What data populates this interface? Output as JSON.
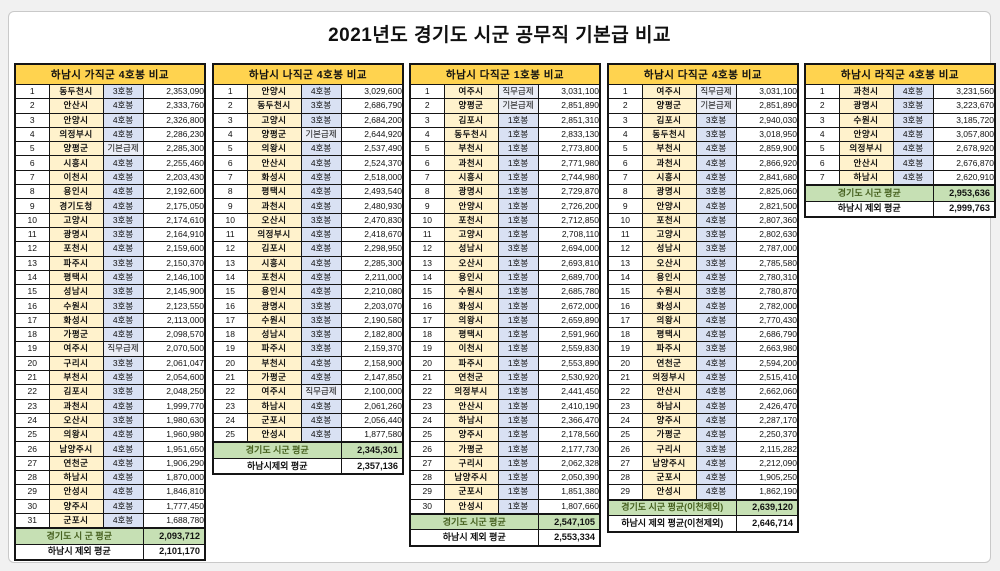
{
  "title": "2021년도 경기도 시군 공무직 기본급 비교",
  "colors": {
    "table_header_bg": "#ffd34f",
    "city_cell_bg": "#fff2cc",
    "pay_step_cell_bg": "#d9e1f3",
    "summary_highlight_bg": "#c6e0b4",
    "page_bg": "#f1f1f1"
  },
  "tables": [
    {
      "header": "하남시 가직군 4호봉 비교",
      "rows": [
        [
          "1",
          "동두천시",
          "3호봉",
          "2,353,090"
        ],
        [
          "2",
          "안산시",
          "4호봉",
          "2,333,760"
        ],
        [
          "3",
          "안양시",
          "4호봉",
          "2,326,800"
        ],
        [
          "4",
          "의정부시",
          "4호봉",
          "2,286,230"
        ],
        [
          "5",
          "양평군",
          "기본급제",
          "2,285,300"
        ],
        [
          "6",
          "시흥시",
          "4호봉",
          "2,255,460"
        ],
        [
          "7",
          "이천시",
          "4호봉",
          "2,203,430"
        ],
        [
          "8",
          "용인시",
          "4호봉",
          "2,192,600"
        ],
        [
          "9",
          "경기도청",
          "4호봉",
          "2,175,050"
        ],
        [
          "10",
          "고양시",
          "3호봉",
          "2,174,610"
        ],
        [
          "11",
          "광명시",
          "3호봉",
          "2,164,910"
        ],
        [
          "12",
          "포천시",
          "4호봉",
          "2,159,600"
        ],
        [
          "13",
          "파주시",
          "3호봉",
          "2,150,370"
        ],
        [
          "14",
          "평택시",
          "4호봉",
          "2,146,100"
        ],
        [
          "15",
          "성남시",
          "3호봉",
          "2,145,900"
        ],
        [
          "16",
          "수원시",
          "3호봉",
          "2,123,550"
        ],
        [
          "17",
          "화성시",
          "4호봉",
          "2,113,000"
        ],
        [
          "18",
          "가평군",
          "4호봉",
          "2,098,570"
        ],
        [
          "19",
          "여주시",
          "직무급제",
          "2,070,500"
        ],
        [
          "20",
          "구리시",
          "3호봉",
          "2,061,047"
        ],
        [
          "21",
          "부천시",
          "4호봉",
          "2,054,600"
        ],
        [
          "22",
          "김포시",
          "3호봉",
          "2,048,250"
        ],
        [
          "23",
          "과천시",
          "4호봉",
          "1,999,770"
        ],
        [
          "24",
          "오산시",
          "3호봉",
          "1,980,630"
        ],
        [
          "25",
          "의왕시",
          "4호봉",
          "1,960,980"
        ],
        [
          "26",
          "남양주시",
          "4호봉",
          "1,951,650"
        ],
        [
          "27",
          "연천군",
          "4호봉",
          "1,906,290"
        ],
        [
          "28",
          "하남시",
          "4호봉",
          "1,870,000"
        ],
        [
          "29",
          "안성시",
          "4호봉",
          "1,846,810"
        ],
        [
          "30",
          "양주시",
          "4호봉",
          "1,777,450"
        ],
        [
          "31",
          "군포시",
          "4호봉",
          "1,688,780"
        ]
      ],
      "summary": [
        {
          "label": "경기도 시 군 평균",
          "value": "2,093,712",
          "highlight": true
        },
        {
          "label": "하남시 제외 평균",
          "value": "2,101,170",
          "highlight": false
        }
      ]
    },
    {
      "header": "하남시 나직군 4호봉 비교",
      "rows": [
        [
          "1",
          "안양시",
          "4호봉",
          "3,029,600"
        ],
        [
          "2",
          "동두천시",
          "3호봉",
          "2,686,790"
        ],
        [
          "3",
          "고양시",
          "3호봉",
          "2,684,200"
        ],
        [
          "4",
          "양평군",
          "기본급제",
          "2,644,920"
        ],
        [
          "5",
          "의왕시",
          "4호봉",
          "2,537,490"
        ],
        [
          "6",
          "안산시",
          "4호봉",
          "2,524,370"
        ],
        [
          "7",
          "화성시",
          "4호봉",
          "2,518,000"
        ],
        [
          "8",
          "평택시",
          "4호봉",
          "2,493,540"
        ],
        [
          "9",
          "과천시",
          "4호봉",
          "2,480,930"
        ],
        [
          "10",
          "오산시",
          "3호봉",
          "2,470,830"
        ],
        [
          "11",
          "의정부시",
          "4호봉",
          "2,418,670"
        ],
        [
          "12",
          "김포시",
          "4호봉",
          "2,298,950"
        ],
        [
          "13",
          "시흥시",
          "4호봉",
          "2,285,300"
        ],
        [
          "14",
          "포천시",
          "4호봉",
          "2,211,000"
        ],
        [
          "15",
          "용인시",
          "4호봉",
          "2,210,080"
        ],
        [
          "16",
          "광명시",
          "3호봉",
          "2,203,070"
        ],
        [
          "17",
          "수원시",
          "3호봉",
          "2,190,580"
        ],
        [
          "18",
          "성남시",
          "3호봉",
          "2,182,800"
        ],
        [
          "19",
          "파주시",
          "3호봉",
          "2,159,370"
        ],
        [
          "20",
          "부천시",
          "4호봉",
          "2,158,900"
        ],
        [
          "21",
          "가평군",
          "4호봉",
          "2,147,850"
        ],
        [
          "22",
          "여주시",
          "직무급제",
          "2,100,000"
        ],
        [
          "23",
          "하남시",
          "4호봉",
          "2,061,260"
        ],
        [
          "24",
          "군포시",
          "4호봉",
          "2,056,440"
        ],
        [
          "25",
          "안성시",
          "4호봉",
          "1,877,580"
        ]
      ],
      "summary": [
        {
          "label": "경기도 시군 평균",
          "value": "2,345,301",
          "highlight": true
        },
        {
          "label": "하남시제외 평균",
          "value": "2,357,136",
          "highlight": false
        }
      ]
    },
    {
      "header": "하남시 다직군 1호봉 비교",
      "rows": [
        [
          "1",
          "여주시",
          "직무급제",
          "3,031,100"
        ],
        [
          "2",
          "양평군",
          "기본급제",
          "2,851,890"
        ],
        [
          "3",
          "김포시",
          "1호봉",
          "2,851,310"
        ],
        [
          "4",
          "동두천시",
          "1호봉",
          "2,833,130"
        ],
        [
          "5",
          "부천시",
          "1호봉",
          "2,773,800"
        ],
        [
          "6",
          "과천시",
          "1호봉",
          "2,771,980"
        ],
        [
          "7",
          "시흥시",
          "1호봉",
          "2,744,980"
        ],
        [
          "8",
          "광명시",
          "1호봉",
          "2,729,870"
        ],
        [
          "9",
          "안양시",
          "1호봉",
          "2,726,200"
        ],
        [
          "10",
          "포천시",
          "1호봉",
          "2,712,850"
        ],
        [
          "11",
          "고양시",
          "1호봉",
          "2,708,110"
        ],
        [
          "12",
          "성남시",
          "3호봉",
          "2,694,000"
        ],
        [
          "13",
          "오산시",
          "1호봉",
          "2,693,810"
        ],
        [
          "14",
          "용인시",
          "1호봉",
          "2,689,700"
        ],
        [
          "15",
          "수원시",
          "1호봉",
          "2,685,780"
        ],
        [
          "16",
          "화성시",
          "1호봉",
          "2,672,000"
        ],
        [
          "17",
          "의왕시",
          "1호봉",
          "2,659,890"
        ],
        [
          "18",
          "평택시",
          "1호봉",
          "2,591,960"
        ],
        [
          "19",
          "이천시",
          "1호봉",
          "2,559,830"
        ],
        [
          "20",
          "파주시",
          "1호봉",
          "2,553,890"
        ],
        [
          "21",
          "연천군",
          "1호봉",
          "2,530,920"
        ],
        [
          "22",
          "의정부시",
          "1호봉",
          "2,441,450"
        ],
        [
          "23",
          "안산시",
          "1호봉",
          "2,410,190"
        ],
        [
          "24",
          "하남시",
          "1호봉",
          "2,366,470"
        ],
        [
          "25",
          "양주시",
          "1호봉",
          "2,178,560"
        ],
        [
          "26",
          "가평군",
          "1호봉",
          "2,177,730"
        ],
        [
          "27",
          "구리시",
          "1호봉",
          "2,062,328"
        ],
        [
          "28",
          "남양주시",
          "1호봉",
          "2,050,390"
        ],
        [
          "29",
          "군포시",
          "1호봉",
          "1,851,380"
        ],
        [
          "30",
          "안성시",
          "1호봉",
          "1,807,660"
        ]
      ],
      "summary": [
        {
          "label": "경기도 시군 평균",
          "value": "2,547,105",
          "highlight": true
        },
        {
          "label": "하남시 제외 평균",
          "value": "2,553,334",
          "highlight": false
        }
      ]
    },
    {
      "header": "하남시 다직군 4호봉 비교",
      "rows": [
        [
          "1",
          "여주시",
          "직무급제",
          "3,031,100"
        ],
        [
          "2",
          "양평군",
          "기본급제",
          "2,851,890"
        ],
        [
          "3",
          "김포시",
          "3호봉",
          "2,940,030"
        ],
        [
          "4",
          "동두천시",
          "3호봉",
          "3,018,950"
        ],
        [
          "5",
          "부천시",
          "4호봉",
          "2,859,900"
        ],
        [
          "6",
          "과천시",
          "4호봉",
          "2,866,920"
        ],
        [
          "7",
          "시흥시",
          "4호봉",
          "2,841,680"
        ],
        [
          "8",
          "광명시",
          "3호봉",
          "2,825,060"
        ],
        [
          "9",
          "안양시",
          "4호봉",
          "2,821,500"
        ],
        [
          "10",
          "포천시",
          "4호봉",
          "2,807,360"
        ],
        [
          "11",
          "고양시",
          "3호봉",
          "2,802,630"
        ],
        [
          "12",
          "성남시",
          "3호봉",
          "2,787,000"
        ],
        [
          "13",
          "오산시",
          "3호봉",
          "2,785,580"
        ],
        [
          "14",
          "용인시",
          "4호봉",
          "2,780,310"
        ],
        [
          "15",
          "수원시",
          "3호봉",
          "2,780,870"
        ],
        [
          "16",
          "화성시",
          "4호봉",
          "2,782,000"
        ],
        [
          "17",
          "의왕시",
          "4호봉",
          "2,770,430"
        ],
        [
          "18",
          "평택시",
          "4호봉",
          "2,686,790"
        ],
        [
          "19",
          "파주시",
          "3호봉",
          "2,663,980"
        ],
        [
          "20",
          "연천군",
          "4호봉",
          "2,594,200"
        ],
        [
          "21",
          "의정부시",
          "4호봉",
          "2,515,410"
        ],
        [
          "22",
          "안산시",
          "4호봉",
          "2,662,060"
        ],
        [
          "23",
          "하남시",
          "4호봉",
          "2,426,470"
        ],
        [
          "24",
          "양주시",
          "4호봉",
          "2,287,170"
        ],
        [
          "25",
          "가평군",
          "4호봉",
          "2,250,370"
        ],
        [
          "26",
          "구리시",
          "3호봉",
          "2,115,282"
        ],
        [
          "27",
          "남양주시",
          "4호봉",
          "2,212,090"
        ],
        [
          "28",
          "군포시",
          "4호봉",
          "1,905,250"
        ],
        [
          "29",
          "안성시",
          "4호봉",
          "1,862,190"
        ]
      ],
      "summary": [
        {
          "label": "경기도 시군 평균(이천제외)",
          "value": "2,639,120",
          "highlight": true
        },
        {
          "label": "하남시 제외 평균(이천제외)",
          "value": "2,646,714",
          "highlight": false
        }
      ]
    },
    {
      "header": "하남시 라직군 4호봉 비교",
      "rows": [
        [
          "1",
          "과천시",
          "4호봉",
          "3,231,560"
        ],
        [
          "2",
          "광명시",
          "3호봉",
          "3,223,670"
        ],
        [
          "3",
          "수원시",
          "3호봉",
          "3,185,720"
        ],
        [
          "4",
          "안양시",
          "4호봉",
          "3,057,800"
        ],
        [
          "5",
          "의정부시",
          "4호봉",
          "2,678,920"
        ],
        [
          "6",
          "안산시",
          "4호봉",
          "2,676,870"
        ],
        [
          "7",
          "하남시",
          "4호봉",
          "2,620,910"
        ]
      ],
      "summary": [
        {
          "label": "경기도 시군 평균",
          "value": "2,953,636",
          "highlight": true
        },
        {
          "label": "하남시 제외 평균",
          "value": "2,999,763",
          "highlight": false
        }
      ]
    }
  ]
}
